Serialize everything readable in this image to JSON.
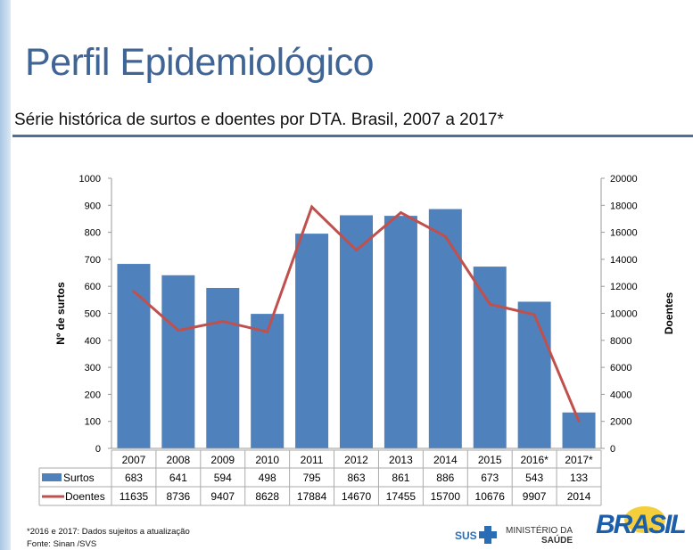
{
  "title": "Perfil Epidemiológico",
  "subtitle": "Série histórica de surtos e doentes por DTA. Brasil, 2007 a 2017*",
  "footnote": "*2016 e 2017: Dados sujeitos a atualização",
  "source": "Fonte: Sinan /SVS",
  "logos": {
    "sus": "SUS",
    "ministerio": "MINISTÉRIO DA",
    "saude": "SAÚDE",
    "brasil": "BRASIL"
  },
  "chart_data": {
    "type": "bar+line",
    "categories": [
      "2007",
      "2008",
      "2009",
      "2010",
      "2011",
      "2012",
      "2013",
      "2014",
      "2015",
      "2016*",
      "2017*"
    ],
    "series": [
      {
        "name": "Surtos",
        "type": "bar",
        "axis": "left",
        "color": "#4f81bd",
        "values": [
          683,
          641,
          594,
          498,
          795,
          863,
          861,
          886,
          673,
          543,
          133
        ]
      },
      {
        "name": "Doentes",
        "type": "line",
        "axis": "right",
        "color": "#c0504d",
        "values": [
          11635,
          8736,
          9407,
          8628,
          17884,
          14670,
          17455,
          15700,
          10676,
          9907,
          2014
        ]
      }
    ],
    "ylabel": "Nº de surtos",
    "y2label": "Doentes",
    "ylim": [
      0,
      1000
    ],
    "y2lim": [
      0,
      20000
    ],
    "yticks": [
      "0",
      "100",
      "200",
      "300",
      "400",
      "500",
      "600",
      "700",
      "800",
      "900",
      "1000"
    ],
    "y2ticks": [
      "0",
      "2000",
      "4000",
      "6000",
      "8000",
      "10000",
      "12000",
      "14000",
      "16000",
      "18000",
      "20000"
    ],
    "grid": false,
    "legend": "data-table"
  }
}
